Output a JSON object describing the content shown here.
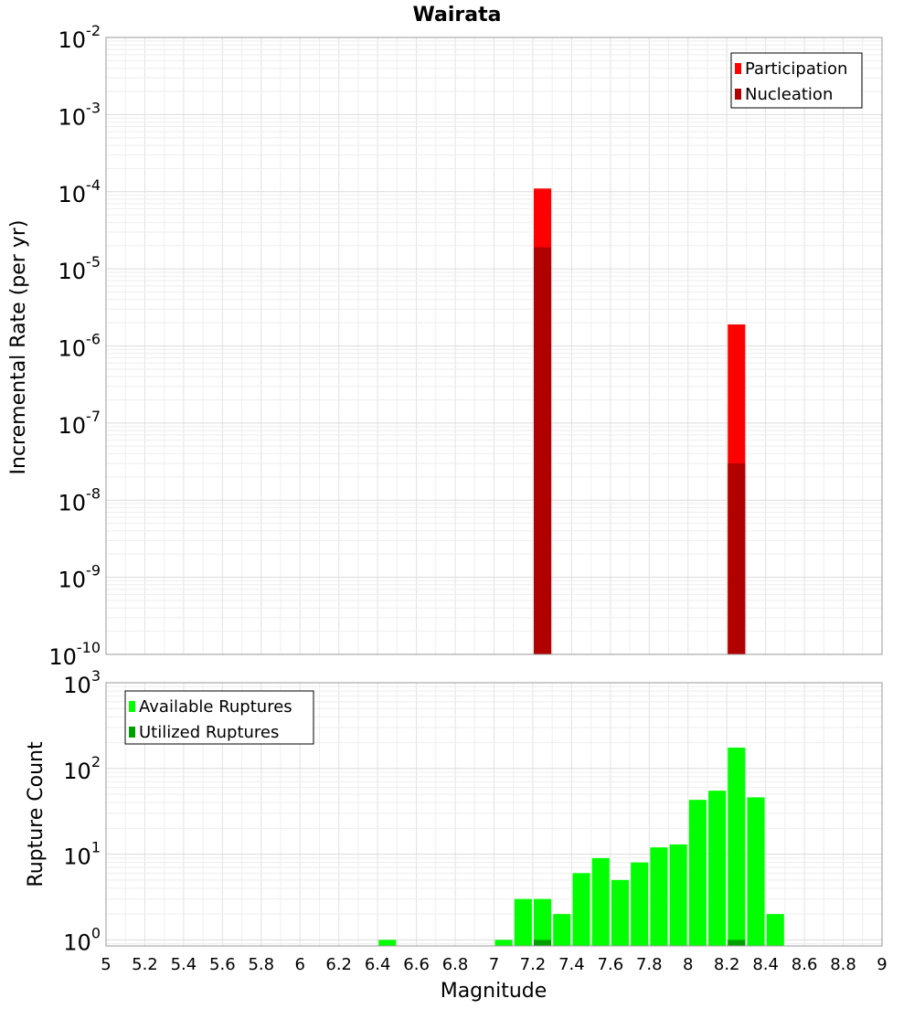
{
  "chart_data": [
    {
      "type": "bar",
      "title": "Wairata",
      "ylabel": "Incremental Rate (per yr)",
      "yscale": "log",
      "ylim": [
        1e-10,
        0.01
      ],
      "xlim": [
        5,
        9
      ],
      "bin_width": 0.1,
      "y_ticks": [
        {
          "base": "10",
          "exp": "-2"
        },
        {
          "base": "10",
          "exp": "-3"
        },
        {
          "base": "10",
          "exp": "-4"
        },
        {
          "base": "10",
          "exp": "-5"
        },
        {
          "base": "10",
          "exp": "-6"
        },
        {
          "base": "10",
          "exp": "-7"
        },
        {
          "base": "10",
          "exp": "-8"
        },
        {
          "base": "10",
          "exp": "-9"
        },
        {
          "base": "10",
          "exp": "-10"
        }
      ],
      "legend_position": "top-right",
      "series": [
        {
          "name": "Participation",
          "color": "#ff0000",
          "points": [
            {
              "x": 7.25,
              "y": 0.00011
            },
            {
              "x": 8.25,
              "y": 1.9e-06
            }
          ]
        },
        {
          "name": "Nucleation",
          "color": "#b00000",
          "points": [
            {
              "x": 7.25,
              "y": 1.9e-05
            },
            {
              "x": 8.25,
              "y": 3e-08
            }
          ]
        }
      ]
    },
    {
      "type": "bar",
      "ylabel": "Rupture Count",
      "xlabel": "Magnitude",
      "yscale": "log",
      "ylim": [
        0.85,
        1000
      ],
      "xlim": [
        5,
        9
      ],
      "bin_width": 0.1,
      "x_ticks": [
        "5",
        "5.2",
        "5.4",
        "5.6",
        "5.8",
        "6",
        "6.2",
        "6.4",
        "6.6",
        "6.8",
        "7",
        "7.2",
        "7.4",
        "7.6",
        "7.8",
        "8",
        "8.2",
        "8.4",
        "8.6",
        "8.8",
        "9"
      ],
      "y_ticks": [
        {
          "base": "10",
          "exp": "3"
        },
        {
          "base": "10",
          "exp": "2"
        },
        {
          "base": "10",
          "exp": "1"
        },
        {
          "base": "10",
          "exp": "0"
        }
      ],
      "legend_position": "top-left",
      "series": [
        {
          "name": "Available Ruptures",
          "color": "#00ff00",
          "points": [
            {
              "x": 6.45,
              "y": 1
            },
            {
              "x": 7.05,
              "y": 1
            },
            {
              "x": 7.15,
              "y": 3
            },
            {
              "x": 7.25,
              "y": 3
            },
            {
              "x": 7.35,
              "y": 2
            },
            {
              "x": 7.45,
              "y": 6
            },
            {
              "x": 7.55,
              "y": 9
            },
            {
              "x": 7.65,
              "y": 5
            },
            {
              "x": 7.75,
              "y": 8
            },
            {
              "x": 7.85,
              "y": 12
            },
            {
              "x": 7.95,
              "y": 13
            },
            {
              "x": 8.05,
              "y": 43
            },
            {
              "x": 8.15,
              "y": 55
            },
            {
              "x": 8.25,
              "y": 175
            },
            {
              "x": 8.35,
              "y": 46
            },
            {
              "x": 8.45,
              "y": 2
            }
          ]
        },
        {
          "name": "Utilized Ruptures",
          "color": "#00a000",
          "points": [
            {
              "x": 7.25,
              "y": 1
            },
            {
              "x": 8.25,
              "y": 1
            }
          ]
        }
      ]
    }
  ]
}
